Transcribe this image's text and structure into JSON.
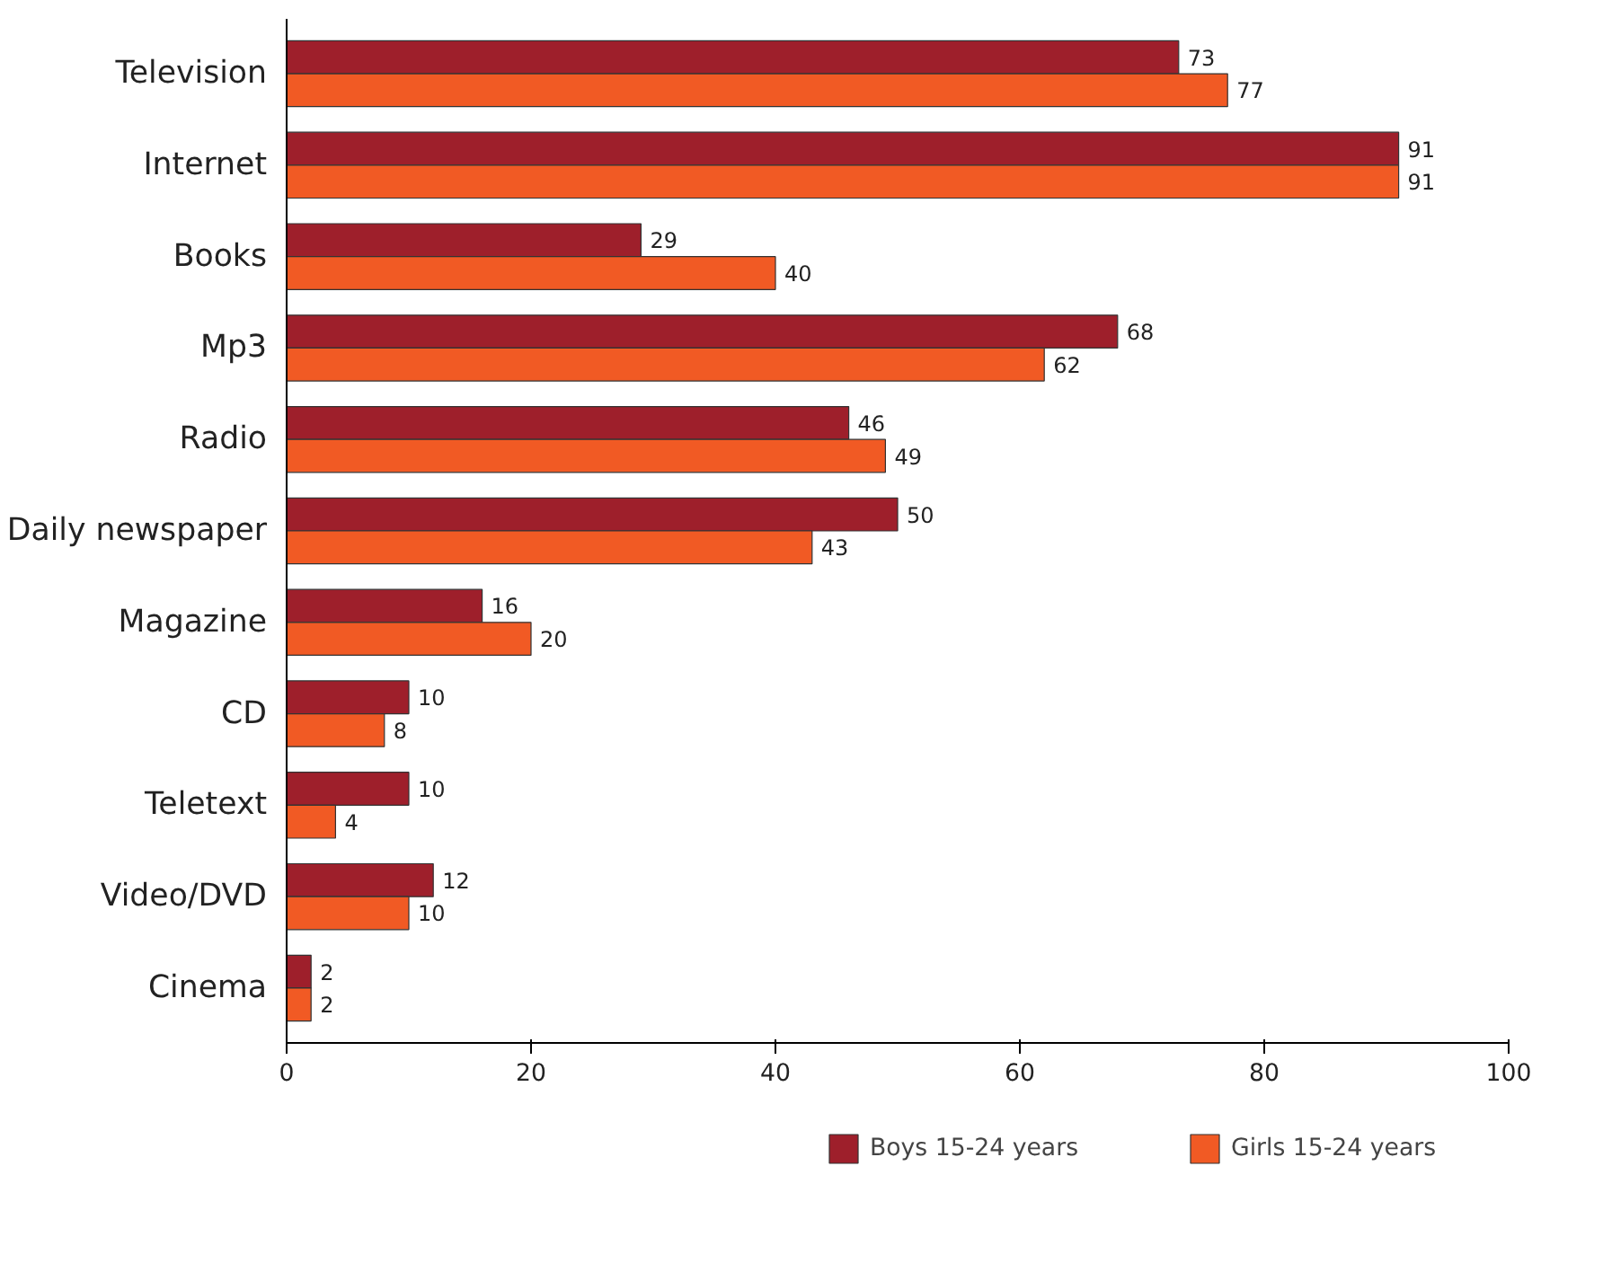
{
  "chart_data": {
    "type": "bar",
    "orientation": "horizontal",
    "categories": [
      "Television",
      "Internet",
      "Books",
      "Mp3",
      "Radio",
      "Daily newspaper",
      "Magazine",
      "CD",
      "Teletext",
      "Video/DVD",
      "Cinema"
    ],
    "series": [
      {
        "name": "Boys 15-24 years",
        "color": "#9e1f2b",
        "values": [
          73,
          91,
          29,
          68,
          46,
          50,
          16,
          10,
          10,
          12,
          2
        ]
      },
      {
        "name": "Girls 15-24 years",
        "color": "#f15a24",
        "values": [
          77,
          91,
          40,
          62,
          49,
          43,
          20,
          8,
          4,
          10,
          2
        ]
      }
    ],
    "xlim": [
      0,
      100
    ],
    "xticks": [
      0,
      20,
      40,
      60,
      80,
      100
    ],
    "data_labels": true,
    "grid": false,
    "legend": "bottom"
  }
}
